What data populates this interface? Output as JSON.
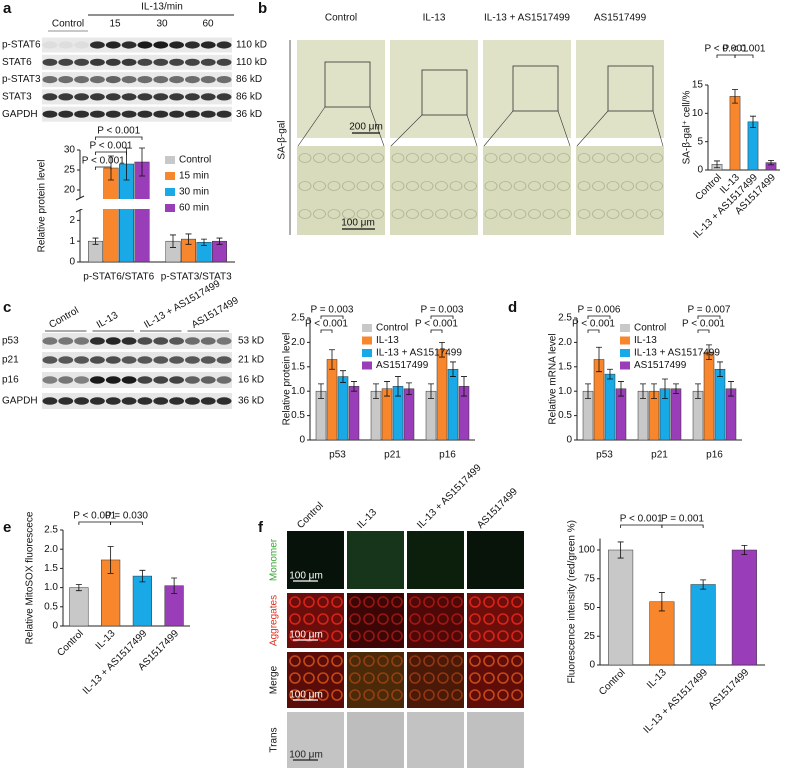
{
  "panels": {
    "a": {
      "letter": "a",
      "blot": {
        "treatment": "IL-13/min",
        "lanes": [
          "Control",
          "15",
          "30",
          "60"
        ],
        "rows": [
          {
            "label": "p-STAT6",
            "size": "110 kD"
          },
          {
            "label": "STAT6",
            "size": "110 kD"
          },
          {
            "label": "p-STAT3",
            "size": "86 kD"
          },
          {
            "label": "STAT3",
            "size": "86 kD"
          },
          {
            "label": "GAPDH",
            "size": "36 kD"
          }
        ]
      }
    },
    "b": {
      "letter": "b",
      "columns": [
        "Control",
        "IL-13",
        "IL-13 + AS1517499",
        "AS1517499"
      ],
      "row_label": "SA-β-gal",
      "scale_bars": [
        "200 μm",
        "100 μm"
      ]
    },
    "c": {
      "letter": "c",
      "blot": {
        "lanes": [
          "Control",
          "IL-13",
          "IL-13 + AS1517499",
          "AS1517499"
        ],
        "rows": [
          {
            "label": "p53",
            "size": "53 kD"
          },
          {
            "label": "p21",
            "size": "21 kD"
          },
          {
            "label": "p16",
            "size": "16 kD"
          },
          {
            "label": "GAPDH",
            "size": "36 kD"
          }
        ]
      }
    },
    "d": {
      "letter": "d"
    },
    "e": {
      "letter": "e"
    },
    "f": {
      "letter": "f",
      "columns": [
        "Control",
        "IL-13",
        "IL-13 + AS1517499",
        "AS1517499"
      ],
      "rows": [
        "Monomer",
        "Aggregates",
        "Merge",
        "Trans"
      ],
      "scale_bar": "100 μm"
    }
  },
  "chart_data": [
    {
      "type": "bar",
      "ylabel": "Relative protein level",
      "categories": [
        "p-STAT6/STAT6",
        "p-STAT3/STAT3"
      ],
      "series": [
        {
          "name": "Control",
          "color": "#c8c8c8",
          "values": [
            1,
            1
          ],
          "errors": [
            0.15,
            0.3
          ]
        },
        {
          "name": "15 min",
          "color": "#f7862c",
          "values": [
            25.5,
            1.1
          ],
          "errors": [
            3,
            0.25
          ]
        },
        {
          "name": "30 min",
          "color": "#18a9e6",
          "values": [
            26.5,
            0.95
          ],
          "errors": [
            4,
            0.15
          ]
        },
        {
          "name": "60 min",
          "color": "#9a3db8",
          "values": [
            27,
            1.0
          ],
          "errors": [
            3.5,
            0.15
          ]
        }
      ],
      "ylim": [
        [
          0,
          2.5
        ],
        [
          18,
          30
        ]
      ],
      "yticks": [
        0,
        1,
        2,
        20,
        25,
        30
      ],
      "annotations": [
        "P < 0.001",
        "P < 0.001",
        "P < 0.001"
      ]
    },
    {
      "type": "bar",
      "ylabel": "SA-β-gal⁺ cell/%",
      "categories": [
        "Control",
        "IL-13",
        "IL-13 + AS1517499",
        "AS1517499"
      ],
      "values": [
        1,
        13,
        8.5,
        1.3
      ],
      "errors": [
        0.6,
        1.2,
        1,
        0.4
      ],
      "colors": [
        "#c8c8c8",
        "#f7862c",
        "#18a9e6",
        "#9a3db8"
      ],
      "ylim": [
        0,
        15
      ],
      "yticks": [
        0,
        5,
        10,
        15
      ],
      "annotations": [
        "P < 0.001",
        "P < 0.001"
      ]
    },
    {
      "type": "bar",
      "ylabel": "Relative protein level",
      "categories": [
        "p53",
        "p21",
        "p16"
      ],
      "series": [
        {
          "name": "Control",
          "color": "#c8c8c8",
          "values": [
            1.0,
            1.0,
            1.0
          ],
          "errors": [
            0.15,
            0.15,
            0.15
          ]
        },
        {
          "name": "IL-13",
          "color": "#f7862c",
          "values": [
            1.65,
            1.05,
            1.85
          ],
          "errors": [
            0.2,
            0.15,
            0.15
          ]
        },
        {
          "name": "IL-13 + AS1517499",
          "color": "#18a9e6",
          "values": [
            1.3,
            1.1,
            1.45
          ],
          "errors": [
            0.12,
            0.2,
            0.15
          ]
        },
        {
          "name": "AS1517499",
          "color": "#9a3db8",
          "values": [
            1.1,
            1.05,
            1.1
          ],
          "errors": [
            0.1,
            0.12,
            0.2
          ]
        }
      ],
      "ylim": [
        0,
        2.5
      ],
      "yticks": [
        0,
        0.5,
        {
          "value": 1,
          "label": "1.0"
        },
        1.5,
        {
          "value": 2,
          "label": "2.0"
        },
        2.5
      ],
      "annotations": [
        "P = 0.003",
        "P < 0.001",
        "P = 0.003",
        "P < 0.001"
      ]
    },
    {
      "type": "bar",
      "ylabel": "Relative mRNA level",
      "categories": [
        "p53",
        "p21",
        "p16"
      ],
      "series": [
        {
          "name": "Control",
          "color": "#c8c8c8",
          "values": [
            1.0,
            1.0,
            1.0
          ],
          "errors": [
            0.15,
            0.15,
            0.15
          ]
        },
        {
          "name": "IL-13",
          "color": "#f7862c",
          "values": [
            1.65,
            1.0,
            1.8
          ],
          "errors": [
            0.25,
            0.15,
            0.15
          ]
        },
        {
          "name": "IL-13 + AS1517499",
          "color": "#18a9e6",
          "values": [
            1.35,
            1.05,
            1.45
          ],
          "errors": [
            0.1,
            0.2,
            0.15
          ]
        },
        {
          "name": "AS1517499",
          "color": "#9a3db8",
          "values": [
            1.05,
            1.05,
            1.05
          ],
          "errors": [
            0.15,
            0.1,
            0.15
          ]
        }
      ],
      "ylim": [
        0,
        2.5
      ],
      "yticks": [
        0,
        0.5,
        {
          "value": 1,
          "label": "1.0"
        },
        1.5,
        {
          "value": 2,
          "label": "2.0"
        },
        2.5
      ],
      "annotations": [
        "P = 0.006",
        "P < 0.001",
        "P = 0.007",
        "P < 0.001"
      ]
    },
    {
      "type": "bar",
      "ylabel": "Relative MitoSOX fluorescece",
      "categories": [
        "Control",
        "IL-13",
        "IL-13 + AS1517499",
        "AS1517499"
      ],
      "values": [
        1.0,
        1.72,
        1.3,
        1.05
      ],
      "errors": [
        0.08,
        0.35,
        0.15,
        0.2
      ],
      "colors": [
        "#c8c8c8",
        "#f7862c",
        "#18a9e6",
        "#9a3db8"
      ],
      "ylim": [
        0,
        2.5
      ],
      "yticks": [
        0,
        0.5,
        {
          "value": 1,
          "label": "1.0"
        },
        1.5,
        {
          "value": 2,
          "label": "2.0"
        },
        2.5
      ],
      "annotations": [
        "P < 0.001",
        "P = 0.030"
      ]
    },
    {
      "type": "bar",
      "ylabel": "Fluorescence intensity (red/green %)",
      "categories": [
        "Control",
        "IL-13",
        "IL-13 + AS1517499",
        "AS1517499"
      ],
      "values": [
        100,
        55,
        70,
        100
      ],
      "errors": [
        7,
        8,
        4,
        4
      ],
      "colors": [
        "#c8c8c8",
        "#f7862c",
        "#18a9e6",
        "#9a3db8"
      ],
      "ylim": [
        0,
        110
      ],
      "yticks": [
        0,
        25,
        50,
        75,
        100
      ],
      "annotations": [
        "P < 0.001",
        "P = 0.001"
      ]
    }
  ]
}
